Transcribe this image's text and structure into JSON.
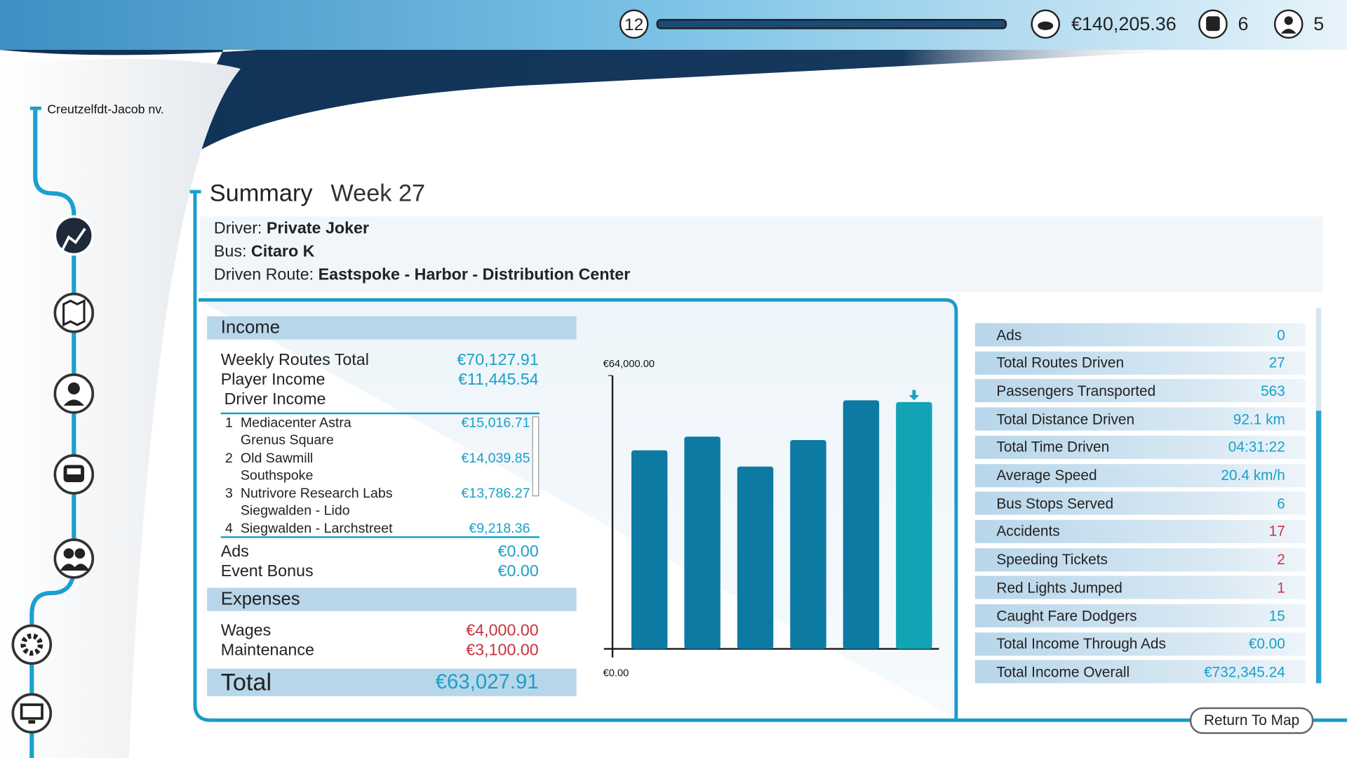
{
  "top_bar": {
    "level": "12",
    "money": "€140,205.36",
    "buses": "6",
    "drivers": "5"
  },
  "sidebar": {
    "location": "Creutzelfdt-Jacob nv."
  },
  "summary": {
    "title": "Summary",
    "week": "Week 27",
    "driver_label": "Driver:",
    "driver": "Private Joker",
    "bus_label": "Bus:",
    "bus": "Citaro K",
    "route_label": "Driven Route:",
    "route": "Eastspoke - Harbor - Distribution Center"
  },
  "income": {
    "heading": "Income",
    "rows": [
      {
        "label": "Weekly Routes Total",
        "value": "€70,127.91"
      },
      {
        "label": "Player Income",
        "value": "€11,445.54"
      }
    ],
    "driver_income": "Driver Income",
    "drivers": [
      {
        "rank": "1",
        "name": "Mediacenter Astra",
        "route": "Grenus Square",
        "amount": "€15,016.71"
      },
      {
        "rank": "2",
        "name": "Old Sawmill",
        "route": "Southspoke",
        "amount": "€14,039.85"
      },
      {
        "rank": "3",
        "name": "Nutrivore Research Labs",
        "route": "Siegwalden - Lido",
        "amount": "€13,786.27"
      },
      {
        "rank": "4",
        "name": "Siegwalden - Larchstreet",
        "amount": "€9,218.36"
      }
    ],
    "other": [
      {
        "label": "Ads",
        "value": "€0.00"
      },
      {
        "label": "Event Bonus",
        "value": "€0.00"
      }
    ]
  },
  "expenses": {
    "heading": "Expenses",
    "rows": [
      {
        "label": "Wages",
        "value": "€4,000.00"
      },
      {
        "label": "Maintenance",
        "value": "€3,100.00"
      }
    ]
  },
  "total": {
    "label": "Total",
    "value": "€63,027.91"
  },
  "stats": [
    {
      "label": "Ads",
      "value": "0"
    },
    {
      "label": "Total Routes Driven",
      "value": "27"
    },
    {
      "label": "Passengers Transported",
      "value": "563"
    },
    {
      "label": "Total Distance Driven",
      "value": "92.1 km"
    },
    {
      "label": "Total Time Driven",
      "value": "04:31:22"
    },
    {
      "label": "Average Speed",
      "value": "20.4 km/h"
    },
    {
      "label": "Bus Stops Served",
      "value": "6"
    },
    {
      "label": "Accidents",
      "value": "17"
    },
    {
      "label": "Speeding Tickets",
      "value": "2"
    },
    {
      "label": "Red Lights Jumped",
      "value": "1"
    },
    {
      "label": "Caught Fare Dodgers",
      "value": "15"
    },
    {
      "label": "Total Income Through Ads",
      "value": "€0.00"
    },
    {
      "label": "Total Income Overall",
      "value": "€732,345.24"
    }
  ],
  "return_button": "Return To Map",
  "chart_data": {
    "type": "bar",
    "values": [
      46500,
      49700,
      42700,
      48900,
      58200,
      57800
    ],
    "colors": [
      "#0d7aa3",
      "#0d7aa3",
      "#0d7aa3",
      "#0d7aa3",
      "#0d7aa3",
      "#12a3b5"
    ],
    "ylim": [
      0,
      64000
    ],
    "yticks": [
      {
        "value": 0,
        "label": "€0.00"
      },
      {
        "value": 64000,
        "label": "€64,000.00"
      }
    ]
  }
}
